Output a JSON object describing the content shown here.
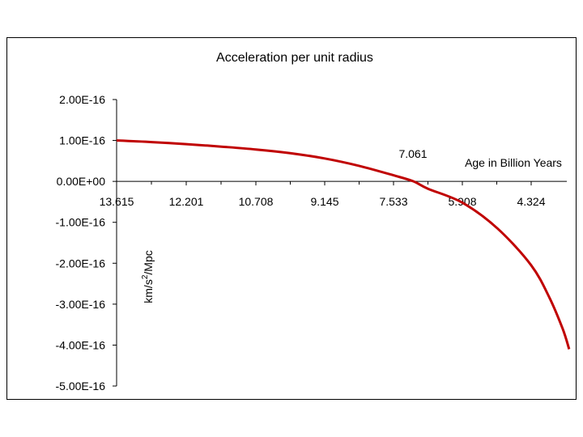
{
  "chart_data": {
    "type": "line",
    "title": "Acceleration per unit radius",
    "xlabel": "Age in Billion Years",
    "ylabel_main": "km/s",
    "ylabel_sup": "2",
    "ylabel_tail": "/Mpc",
    "x_tick_labels": [
      "13.615",
      "12.201",
      "10.708",
      "9.145",
      "7.533",
      "5.908",
      "4.324"
    ],
    "y_tick_labels": [
      "2.00E-16",
      "1.00E-16",
      "0.00E+00",
      "-1.00E-16",
      "-2.00E-16",
      "-3.00E-16",
      "-4.00E-16",
      "-5.00E-16"
    ],
    "ylim": [
      -5e-16,
      2e-16
    ],
    "annotation": "7.061",
    "zero_crossing_age": 7.061,
    "x_reversed": true,
    "grid": false,
    "series": [
      {
        "color": "#c00000",
        "x": [
          13.615,
          12.9,
          12.201,
          11.45,
          10.708,
          9.93,
          9.145,
          8.34,
          7.533,
          7.061,
          6.72,
          5.908,
          5.1,
          4.324,
          3.9,
          3.6,
          3.45
        ],
        "y": [
          1e-16,
          9.6e-17,
          9.1e-17,
          8.5e-17,
          7.8e-17,
          6.9e-17,
          5.6e-17,
          3.8e-17,
          1.5e-17,
          0.0,
          -1.8e-17,
          -5.2e-17,
          -1.15e-16,
          -2.05e-16,
          -2.85e-16,
          -3.6e-16,
          -4.1e-16
        ]
      }
    ]
  }
}
